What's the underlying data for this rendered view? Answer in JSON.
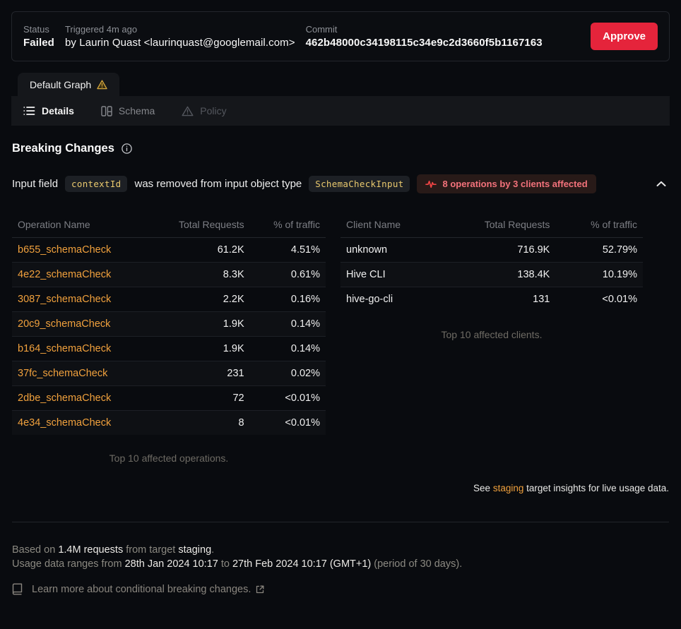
{
  "header": {
    "status_label": "Status",
    "status_value": "Failed",
    "triggered_label": "Triggered 4m ago",
    "triggered_by": "by Laurin Quast <laurinquast@googlemail.com>",
    "commit_label": "Commit",
    "commit_value": "462b48000c34198115c34e9c2d3660f5b1167163",
    "approve_label": "Approve"
  },
  "graph_tab": {
    "label": "Default Graph",
    "warning_icon": "warning-triangle-icon"
  },
  "subtabs": [
    {
      "label": "Details",
      "icon": "list-icon",
      "state": "active"
    },
    {
      "label": "Schema",
      "icon": "schema-icon",
      "state": "inactive"
    },
    {
      "label": "Policy",
      "icon": "warning-triangle-icon",
      "state": "dim"
    }
  ],
  "breaking_changes": {
    "title": "Breaking Changes",
    "info_icon": "info-circle-icon",
    "change": {
      "prefix": "Input field",
      "field_code": "contextId",
      "middle": "was removed from input object type",
      "type_code": "SchemaCheckInput",
      "affected_badge": "8 operations by 3 clients affected",
      "affected_icon": "pulse-icon",
      "collapse_icon": "chevron-up-icon"
    },
    "operations_table": {
      "headers": [
        "Operation Name",
        "Total Requests",
        "% of traffic"
      ],
      "rows": [
        {
          "name": "b655_schemaCheck",
          "requests": "61.2K",
          "traffic": "4.51%"
        },
        {
          "name": "4e22_schemaCheck",
          "requests": "8.3K",
          "traffic": "0.61%"
        },
        {
          "name": "3087_schemaCheck",
          "requests": "2.2K",
          "traffic": "0.16%"
        },
        {
          "name": "20c9_schemaCheck",
          "requests": "1.9K",
          "traffic": "0.14%"
        },
        {
          "name": "b164_schemaCheck",
          "requests": "1.9K",
          "traffic": "0.14%"
        },
        {
          "name": "37fc_schemaCheck",
          "requests": "231",
          "traffic": "0.02%"
        },
        {
          "name": "2dbe_schemaCheck",
          "requests": "72",
          "traffic": "<0.01%"
        },
        {
          "name": "4e34_schemaCheck",
          "requests": "8",
          "traffic": "<0.01%"
        }
      ],
      "caption": "Top 10 affected operations."
    },
    "clients_table": {
      "headers": [
        "Client Name",
        "Total Requests",
        "% of traffic"
      ],
      "rows": [
        {
          "name": "unknown",
          "requests": "716.9K",
          "traffic": "52.79%"
        },
        {
          "name": "Hive CLI",
          "requests": "138.4K",
          "traffic": "10.19%"
        },
        {
          "name": "hive-go-cli",
          "requests": "131",
          "traffic": "<0.01%"
        }
      ],
      "caption": "Top 10 affected clients."
    },
    "insights_note": {
      "pre": "See ",
      "link": "staging",
      "post": " target insights for live usage data."
    }
  },
  "footer": {
    "line1": [
      {
        "text": "Based on ",
        "em": false
      },
      {
        "text": "1.4M requests",
        "em": true
      },
      {
        "text": " from target ",
        "em": false
      },
      {
        "text": "staging",
        "em": true
      },
      {
        "text": ".",
        "em": false
      }
    ],
    "line2": [
      {
        "text": "Usage data ranges from ",
        "em": false
      },
      {
        "text": "28th Jan 2024 10:17",
        "em": true
      },
      {
        "text": " to ",
        "em": false
      },
      {
        "text": "27th Feb 2024 10:17 (GMT+1)",
        "em": true
      },
      {
        "text": " (period of 30 days).",
        "em": false
      }
    ],
    "learn_more": "Learn more about conditional breaking changes.",
    "learn_more_icons": [
      "book-icon",
      "external-link-icon"
    ]
  },
  "colors": {
    "accent_orange": "#f1a13d",
    "code_yellow": "#eac96e",
    "danger_red": "#e5243b",
    "badge_red_text": "#f3727b",
    "badge_red_bg": "#281a18",
    "panel_bg": "#15171b",
    "page_bg": "#090b0f"
  }
}
